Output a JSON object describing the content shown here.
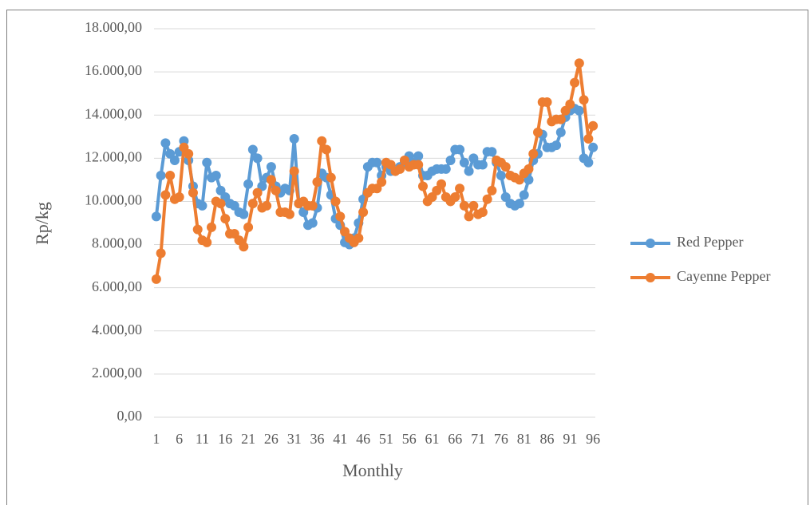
{
  "chart_data": {
    "type": "line",
    "x_label": "Monthly",
    "y_label": "Rp/kg",
    "x": [
      1,
      2,
      3,
      4,
      5,
      6,
      7,
      8,
      9,
      10,
      11,
      12,
      13,
      14,
      15,
      16,
      17,
      18,
      19,
      20,
      21,
      22,
      23,
      24,
      25,
      26,
      27,
      28,
      29,
      30,
      31,
      32,
      33,
      34,
      35,
      36,
      37,
      38,
      39,
      40,
      41,
      42,
      43,
      44,
      45,
      46,
      47,
      48,
      49,
      50,
      51,
      52,
      53,
      54,
      55,
      56,
      57,
      58,
      59,
      60,
      61,
      62,
      63,
      64,
      65,
      66,
      67,
      68,
      69,
      70,
      71,
      72,
      73,
      74,
      75,
      76,
      77,
      78,
      79,
      80,
      81,
      82,
      83,
      84,
      85,
      86,
      87,
      88,
      89,
      90,
      91,
      92,
      93,
      94,
      95,
      96
    ],
    "xlim": [
      0.5,
      96.5
    ],
    "xticks": [
      1,
      6,
      11,
      16,
      21,
      26,
      31,
      36,
      41,
      46,
      51,
      56,
      61,
      66,
      71,
      76,
      81,
      86,
      91,
      96
    ],
    "ylim": [
      0,
      18000
    ],
    "yticks": [
      {
        "value": 0,
        "label": "0,00"
      },
      {
        "value": 2000,
        "label": "2.000,00"
      },
      {
        "value": 4000,
        "label": "4.000,00"
      },
      {
        "value": 6000,
        "label": "6.000,00"
      },
      {
        "value": 8000,
        "label": "8.000,00"
      },
      {
        "value": 10000,
        "label": "10.000,00"
      },
      {
        "value": 12000,
        "label": "12.000,00"
      },
      {
        "value": 14000,
        "label": "14.000,00"
      },
      {
        "value": 16000,
        "label": "16.000,00"
      },
      {
        "value": 18000,
        "label": "18.000,00"
      }
    ],
    "grid": true,
    "legend": "right",
    "series": [
      {
        "name": "Red Pepper",
        "color": "#5b9bd5",
        "values": [
          9300,
          11200,
          12700,
          12200,
          11900,
          12300,
          12800,
          11900,
          10700,
          9900,
          9800,
          11800,
          11100,
          11200,
          10500,
          10200,
          9900,
          9800,
          9500,
          9400,
          10800,
          12400,
          12000,
          10700,
          11100,
          11600,
          10700,
          10400,
          10600,
          10500,
          12900,
          9900,
          9500,
          8900,
          9000,
          9700,
          11300,
          11100,
          10300,
          9200,
          8900,
          8100,
          8000,
          8300,
          9000,
          10100,
          11600,
          11800,
          11800,
          11200,
          11600,
          11400,
          11400,
          11600,
          11800,
          12100,
          11800,
          12100,
          11200,
          11200,
          11400,
          11500,
          11500,
          11500,
          11900,
          12400,
          12400,
          11800,
          11400,
          12000,
          11700,
          11700,
          12300,
          12300,
          11800,
          11200,
          10200,
          9900,
          9800,
          9900,
          10300,
          11000,
          11900,
          12200,
          13100,
          12500,
          12500,
          12600,
          13200,
          13900,
          14200,
          14300,
          14200,
          12000,
          11800,
          12500
        ]
      },
      {
        "name": "Cayenne Pepper",
        "color": "#ed7d31",
        "values": [
          6400,
          7600,
          10300,
          11200,
          10100,
          10200,
          12500,
          12200,
          10400,
          8700,
          8200,
          8100,
          8800,
          10000,
          9900,
          9200,
          8500,
          8500,
          8200,
          7900,
          8800,
          9900,
          10400,
          9700,
          9800,
          11000,
          10500,
          9500,
          9500,
          9400,
          11400,
          9900,
          10000,
          9800,
          9800,
          10900,
          12800,
          12400,
          11100,
          10000,
          9300,
          8600,
          8300,
          8100,
          8300,
          9500,
          10400,
          10600,
          10600,
          10900,
          11800,
          11700,
          11400,
          11500,
          11900,
          11600,
          11700,
          11700,
          10700,
          10000,
          10200,
          10500,
          10800,
          10200,
          10000,
          10200,
          10600,
          9800,
          9300,
          9800,
          9400,
          9500,
          10100,
          10500,
          11900,
          11800,
          11600,
          11200,
          11100,
          11000,
          11300,
          11500,
          12200,
          13200,
          14600,
          14600,
          13700,
          13800,
          13800,
          14200,
          14500,
          15500,
          16400,
          14700,
          12900,
          13500
        ]
      }
    ]
  }
}
